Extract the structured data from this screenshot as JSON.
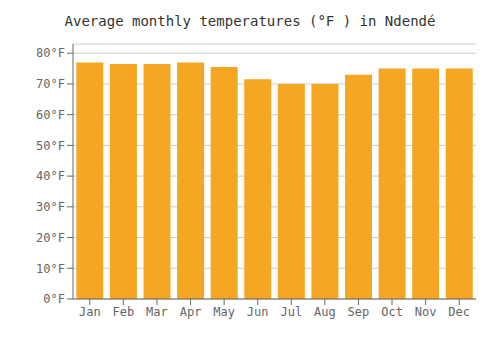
{
  "chart_data": {
    "type": "bar",
    "title": "Average monthly temperatures (°F ) in Ndendé",
    "categories": [
      "Jan",
      "Feb",
      "Mar",
      "Apr",
      "May",
      "Jun",
      "Jul",
      "Aug",
      "Sep",
      "Oct",
      "Nov",
      "Dec"
    ],
    "values": [
      77,
      76.5,
      76.5,
      77,
      75.5,
      71.5,
      70,
      70,
      73,
      75,
      75,
      75
    ],
    "color": "#F5A623",
    "ylim": [
      0,
      83
    ],
    "yticks": [
      {
        "value": 0,
        "label": "0°F"
      },
      {
        "value": 10,
        "label": "10°F"
      },
      {
        "value": 20,
        "label": "20°F"
      },
      {
        "value": 30,
        "label": "30°F"
      },
      {
        "value": 40,
        "label": "40°F"
      },
      {
        "value": 50,
        "label": "50°F"
      },
      {
        "value": 60,
        "label": "60°F"
      },
      {
        "value": 70,
        "label": "70°F"
      },
      {
        "value": 80,
        "label": "80°F"
      }
    ],
    "grid": true
  }
}
